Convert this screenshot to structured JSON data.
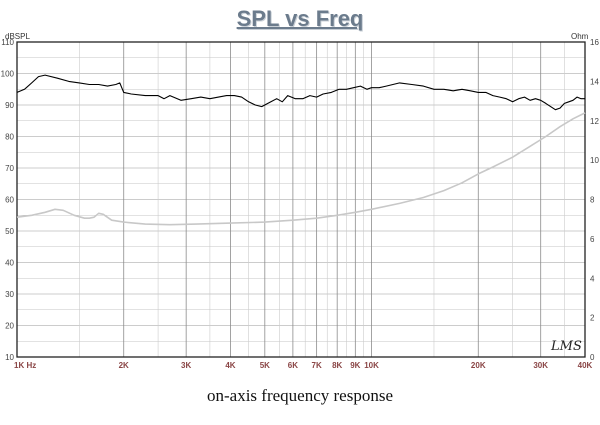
{
  "chart_data": {
    "type": "line",
    "title": "SPL vs Freq",
    "caption": "on-axis frequency response",
    "left_axis": {
      "unit": "dBSPL",
      "min": 10,
      "max": 110,
      "step": 10,
      "ticks": [
        "10",
        "20",
        "30",
        "40",
        "50",
        "60",
        "70",
        "80",
        "90",
        "100",
        "110"
      ]
    },
    "right_axis": {
      "unit": "Ohm",
      "min": 0,
      "max": 16,
      "step": 2,
      "ticks": [
        "0",
        "2",
        "4",
        "6",
        "8",
        "10",
        "12",
        "14",
        "16"
      ]
    },
    "x_axis": {
      "scale": "log",
      "min_hz": 1000,
      "max_hz": 40000,
      "ticks": [
        {
          "hz": 1000,
          "label": "1K  Hz"
        },
        {
          "hz": 2000,
          "label": "2K"
        },
        {
          "hz": 3000,
          "label": "3K"
        },
        {
          "hz": 4000,
          "label": "4K"
        },
        {
          "hz": 5000,
          "label": "5K"
        },
        {
          "hz": 6000,
          "label": "6K"
        },
        {
          "hz": 7000,
          "label": "7K"
        },
        {
          "hz": 8000,
          "label": "8K"
        },
        {
          "hz": 9000,
          "label": "9K"
        },
        {
          "hz": 10000,
          "label": "10K"
        },
        {
          "hz": 20000,
          "label": "20K"
        },
        {
          "hz": 30000,
          "label": "30K"
        },
        {
          "hz": 40000,
          "label": "40K"
        }
      ]
    },
    "watermark": "LMS",
    "grid": true,
    "series": [
      {
        "axis": "left",
        "color": "#000000",
        "points": [
          [
            1000,
            94
          ],
          [
            1050,
            95
          ],
          [
            1100,
            97
          ],
          [
            1150,
            99
          ],
          [
            1200,
            99.5
          ],
          [
            1300,
            98.5
          ],
          [
            1400,
            97.5
          ],
          [
            1500,
            97
          ],
          [
            1600,
            96.5
          ],
          [
            1700,
            96.5
          ],
          [
            1800,
            96
          ],
          [
            1900,
            96.5
          ],
          [
            1950,
            97
          ],
          [
            2000,
            94
          ],
          [
            2100,
            93.5
          ],
          [
            2300,
            93
          ],
          [
            2500,
            93
          ],
          [
            2600,
            92
          ],
          [
            2700,
            93
          ],
          [
            2900,
            91.5
          ],
          [
            3100,
            92
          ],
          [
            3300,
            92.5
          ],
          [
            3500,
            92
          ],
          [
            3700,
            92.5
          ],
          [
            3900,
            93
          ],
          [
            4100,
            93
          ],
          [
            4300,
            92.5
          ],
          [
            4500,
            91
          ],
          [
            4700,
            90
          ],
          [
            4900,
            89.5
          ],
          [
            5200,
            91
          ],
          [
            5400,
            92
          ],
          [
            5600,
            91
          ],
          [
            5800,
            93
          ],
          [
            6100,
            92
          ],
          [
            6400,
            92
          ],
          [
            6700,
            93
          ],
          [
            7000,
            92.5
          ],
          [
            7300,
            93.5
          ],
          [
            7700,
            94
          ],
          [
            8100,
            95
          ],
          [
            8500,
            95
          ],
          [
            8900,
            95.5
          ],
          [
            9300,
            96
          ],
          [
            9700,
            95
          ],
          [
            10000,
            95.5
          ],
          [
            10500,
            95.5
          ],
          [
            11000,
            96
          ],
          [
            12000,
            97
          ],
          [
            13000,
            96.5
          ],
          [
            14000,
            96
          ],
          [
            15000,
            95
          ],
          [
            16000,
            95
          ],
          [
            17000,
            94.5
          ],
          [
            18000,
            95
          ],
          [
            19000,
            94.5
          ],
          [
            20000,
            94
          ],
          [
            21000,
            94
          ],
          [
            22000,
            93
          ],
          [
            23000,
            92.5
          ],
          [
            24000,
            92
          ],
          [
            25000,
            91
          ],
          [
            26000,
            92
          ],
          [
            27000,
            92.5
          ],
          [
            28000,
            91.5
          ],
          [
            29000,
            92
          ],
          [
            30000,
            91.5
          ],
          [
            31000,
            90.5
          ],
          [
            32000,
            89.5
          ],
          [
            33000,
            88.5
          ],
          [
            34000,
            89
          ],
          [
            35000,
            90.5
          ],
          [
            36000,
            91
          ],
          [
            37000,
            91.5
          ],
          [
            38000,
            92.5
          ],
          [
            39000,
            92
          ],
          [
            40000,
            92
          ]
        ]
      },
      {
        "axis": "right",
        "color": "#c8c8c8",
        "points": [
          [
            1000,
            7.1
          ],
          [
            1100,
            7.2
          ],
          [
            1200,
            7.35
          ],
          [
            1280,
            7.5
          ],
          [
            1350,
            7.45
          ],
          [
            1450,
            7.2
          ],
          [
            1550,
            7.05
          ],
          [
            1600,
            7.05
          ],
          [
            1650,
            7.1
          ],
          [
            1700,
            7.3
          ],
          [
            1750,
            7.25
          ],
          [
            1850,
            6.95
          ],
          [
            2000,
            6.85
          ],
          [
            2300,
            6.75
          ],
          [
            2700,
            6.72
          ],
          [
            3200,
            6.75
          ],
          [
            4000,
            6.8
          ],
          [
            5000,
            6.85
          ],
          [
            6000,
            6.95
          ],
          [
            7000,
            7.05
          ],
          [
            8000,
            7.2
          ],
          [
            9000,
            7.35
          ],
          [
            10000,
            7.5
          ],
          [
            12000,
            7.8
          ],
          [
            14000,
            8.1
          ],
          [
            16000,
            8.45
          ],
          [
            18000,
            8.85
          ],
          [
            20000,
            9.3
          ],
          [
            22000,
            9.65
          ],
          [
            25000,
            10.15
          ],
          [
            28000,
            10.7
          ],
          [
            31000,
            11.2
          ],
          [
            34000,
            11.7
          ],
          [
            37000,
            12.1
          ],
          [
            40000,
            12.4
          ]
        ]
      }
    ]
  }
}
